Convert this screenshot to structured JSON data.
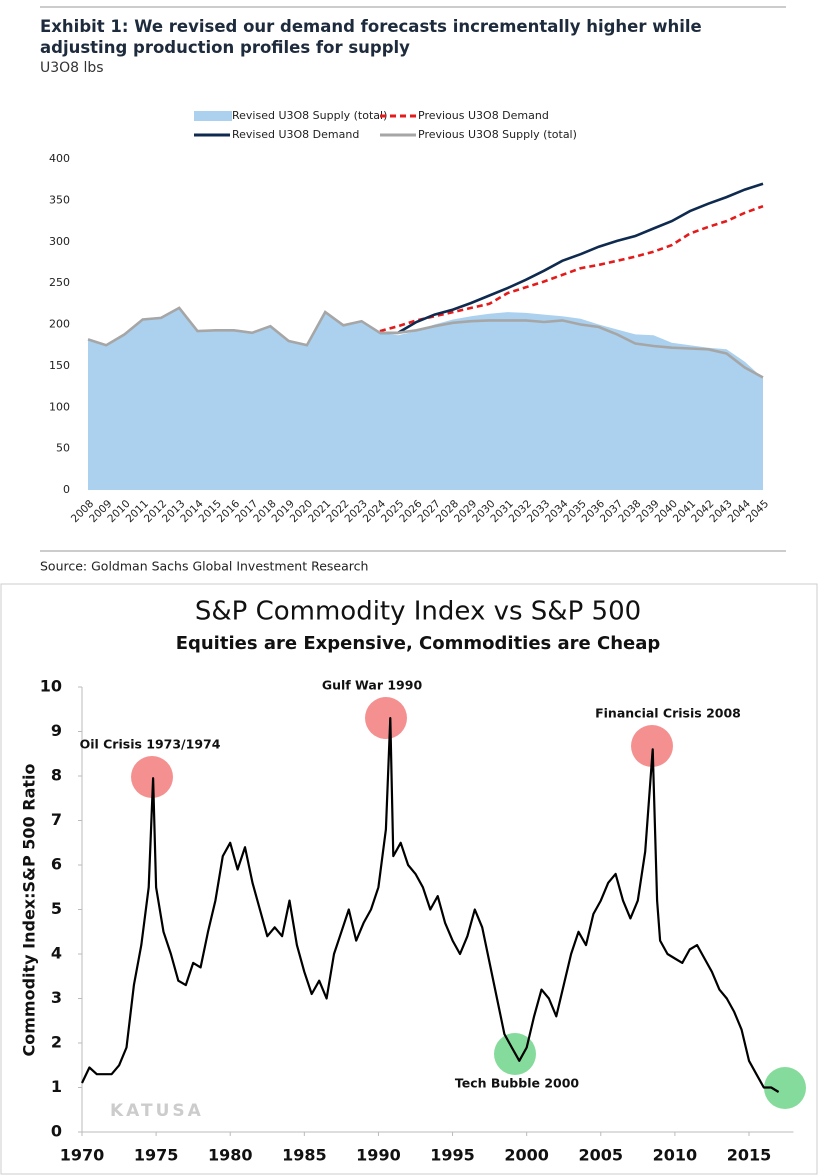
{
  "chart_data": [
    {
      "type": "area-line",
      "title": "Exhibit 1: We revised our demand forecasts incrementally higher while adjusting production profiles for supply",
      "subtitle": "U3O8 lbs",
      "source": "Source: Goldman Sachs Global Investment Research",
      "categories": [
        "2008",
        "2009",
        "2010",
        "2011",
        "2012",
        "2013",
        "2014",
        "2015",
        "2016",
        "2017",
        "2018",
        "2019",
        "2020",
        "2021",
        "2022",
        "2023",
        "2024",
        "2025",
        "2026",
        "2027",
        "2028",
        "2029",
        "2030",
        "2031",
        "2032",
        "2033",
        "2034",
        "2035",
        "2036",
        "2037",
        "2038",
        "2039",
        "2040",
        "2041",
        "2042",
        "2043",
        "2044",
        "2045"
      ],
      "series": [
        {
          "name": "Revised U3O8 Supply (total)",
          "color": "#abd1ef",
          "kind": "area",
          "values": [
            182,
            175,
            188,
            206,
            208,
            220,
            192,
            193,
            193,
            190,
            198,
            180,
            175,
            215,
            199,
            204,
            190,
            187,
            192,
            200,
            206,
            210,
            213,
            215,
            214,
            212,
            210,
            207,
            200,
            194,
            188,
            187,
            178,
            175,
            172,
            170,
            155,
            135
          ]
        },
        {
          "name": "Previous U3O8 Demand",
          "color": "#e31b1b",
          "kind": "line",
          "dashed": true,
          "values": [
            null,
            null,
            null,
            null,
            null,
            null,
            null,
            null,
            null,
            null,
            null,
            null,
            null,
            null,
            null,
            null,
            192,
            198,
            205,
            210,
            215,
            220,
            225,
            238,
            245,
            252,
            260,
            268,
            272,
            277,
            282,
            288,
            296,
            310,
            318,
            325,
            335,
            343
          ]
        },
        {
          "name": "Revised U3O8 Demand",
          "color": "#0f2a4f",
          "kind": "line",
          "dashed": false,
          "values": [
            null,
            null,
            null,
            null,
            null,
            null,
            null,
            null,
            null,
            null,
            null,
            null,
            null,
            null,
            null,
            null,
            190,
            190,
            203,
            212,
            218,
            226,
            235,
            244,
            254,
            265,
            277,
            285,
            294,
            301,
            307,
            316,
            325,
            337,
            346,
            354,
            363,
            370
          ]
        },
        {
          "name": "Previous U3O8 Supply (total)",
          "color": "#a6a6a6",
          "kind": "line",
          "dashed": false,
          "values": [
            182,
            175,
            188,
            206,
            208,
            220,
            192,
            193,
            193,
            190,
            198,
            180,
            175,
            215,
            199,
            204,
            190,
            190,
            193,
            198,
            202,
            204,
            205,
            205,
            205,
            203,
            205,
            200,
            197,
            188,
            177,
            174,
            172,
            171,
            170,
            165,
            148,
            136
          ]
        }
      ],
      "ylim": [
        0,
        400
      ],
      "yticks": [
        0,
        50,
        100,
        150,
        200,
        250,
        300,
        350,
        400
      ],
      "grid": false
    },
    {
      "type": "line",
      "title": "S&P Commodity Index vs S&P 500",
      "subtitle": "Equities are Expensive, Commodities are Cheap",
      "y_label": "Commodity Index:S&P 500 Ratio",
      "annotations": [
        "Oil Crisis 1973/1974",
        "Gulf War 1990",
        "Financial Crisis 2008",
        "Tech Bubble 2000"
      ],
      "watermark": "KATUSA",
      "x": [
        1970,
        1970.5,
        1971,
        1972,
        1972.5,
        1973,
        1973.5,
        1974,
        1974.5,
        1974.8,
        1975,
        1975.5,
        1976,
        1976.5,
        1977,
        1977.5,
        1978,
        1978.5,
        1979,
        1979.5,
        1980,
        1980.5,
        1981,
        1981.5,
        1982,
        1982.5,
        1983,
        1983.5,
        1984,
        1984.5,
        1985,
        1985.5,
        1986,
        1986.5,
        1987,
        1987.5,
        1988,
        1988.5,
        1989,
        1989.5,
        1990,
        1990.5,
        1990.8,
        1991,
        1991.5,
        1992,
        1992.5,
        1993,
        1993.5,
        1994,
        1994.5,
        1995,
        1995.5,
        1996,
        1996.5,
        1997,
        1997.5,
        1998,
        1998.5,
        1999,
        1999.5,
        2000,
        2000.5,
        2001,
        2001.5,
        2002,
        2002.5,
        2003,
        2003.5,
        2004,
        2004.5,
        2005,
        2005.5,
        2006,
        2006.5,
        2007,
        2007.5,
        2008,
        2008.5,
        2008.8,
        2009,
        2009.5,
        2010,
        2010.5,
        2011,
        2011.5,
        2012,
        2012.5,
        2013,
        2013.5,
        2014,
        2014.5,
        2015,
        2015.5,
        2016,
        2016.5,
        2017
      ],
      "series": [
        {
          "name": "Commodity Index:S&P 500 Ratio",
          "color": "#000000",
          "values": [
            1.1,
            1.45,
            1.3,
            1.3,
            1.5,
            1.9,
            3.3,
            4.2,
            5.5,
            7.95,
            5.5,
            4.5,
            4.0,
            3.4,
            3.3,
            3.8,
            3.7,
            4.5,
            5.2,
            6.2,
            6.5,
            5.9,
            6.4,
            5.6,
            5.0,
            4.4,
            4.6,
            4.4,
            5.2,
            4.2,
            3.6,
            3.1,
            3.4,
            3.0,
            4.0,
            4.5,
            5.0,
            4.3,
            4.7,
            5.0,
            5.5,
            6.8,
            9.3,
            6.2,
            6.5,
            6.0,
            5.8,
            5.5,
            5.0,
            5.3,
            4.7,
            4.3,
            4.0,
            4.4,
            5.0,
            4.6,
            3.8,
            3.0,
            2.2,
            1.9,
            1.6,
            1.9,
            2.6,
            3.2,
            3.0,
            2.6,
            3.3,
            4.0,
            4.5,
            4.2,
            4.9,
            5.2,
            5.6,
            5.8,
            5.2,
            4.8,
            5.2,
            6.3,
            8.6,
            5.2,
            4.3,
            4.0,
            3.9,
            3.8,
            4.1,
            4.2,
            3.9,
            3.6,
            3.2,
            3.0,
            2.7,
            2.3,
            1.6,
            1.3,
            1.0,
            1.0,
            0.9
          ]
        }
      ],
      "xlim": [
        1970,
        2018
      ],
      "xticks": [
        1970,
        1975,
        1980,
        1985,
        1990,
        1995,
        2000,
        2005,
        2010,
        2015
      ],
      "ylim": [
        0,
        10
      ],
      "yticks": [
        0,
        1,
        2,
        3,
        4,
        5,
        6,
        7,
        8,
        9,
        10
      ]
    }
  ]
}
